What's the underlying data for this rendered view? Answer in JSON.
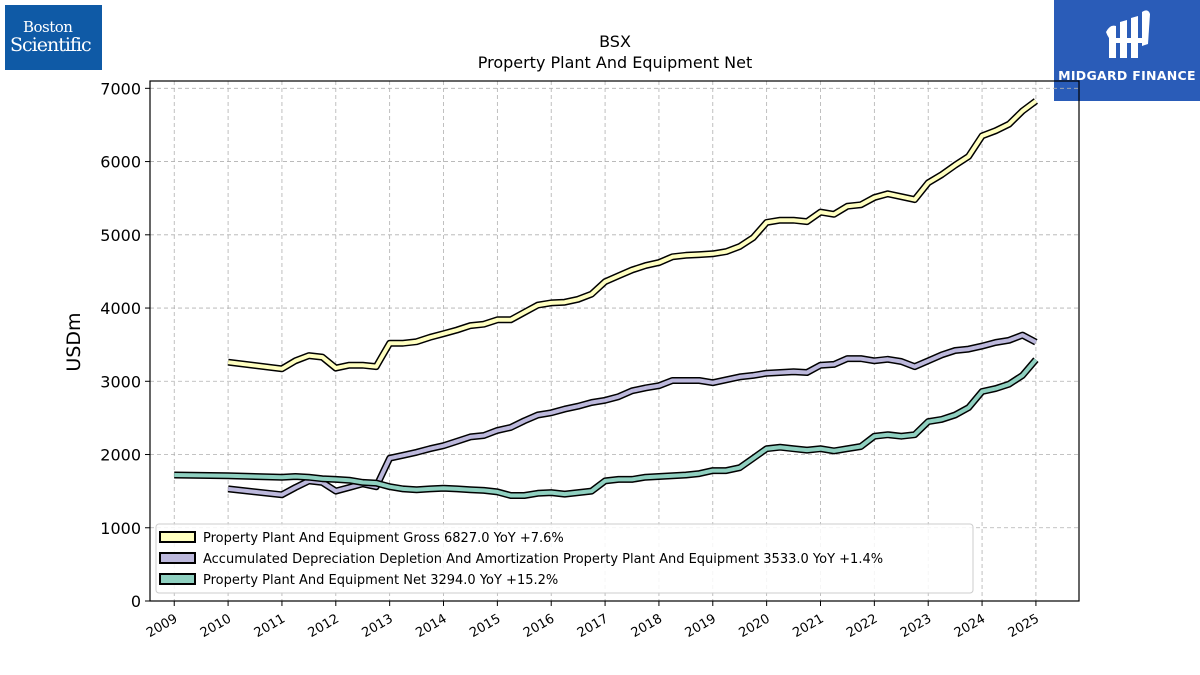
{
  "logos": {
    "left": {
      "line1": "Boston",
      "line2": "Scientific",
      "color": "#0f5aa6"
    },
    "right": {
      "text": "MIDGARD FINANCE",
      "icon": "midgard-logo-mark",
      "color": "#2a5cb8"
    }
  },
  "chart_data": {
    "type": "line",
    "title": "BSX",
    "subtitle": "Property Plant And Equipment Net",
    "xlabel": "",
    "ylabel": "USDm",
    "xlim": [
      2008.55,
      2025.8
    ],
    "ylim": [
      0,
      7100
    ],
    "yticks": [
      0,
      1000,
      2000,
      3000,
      4000,
      5000,
      6000,
      7000
    ],
    "xticks": [
      2009,
      2010,
      2011,
      2012,
      2013,
      2014,
      2015,
      2016,
      2017,
      2018,
      2019,
      2020,
      2021,
      2022,
      2023,
      2024,
      2025
    ],
    "grid": true,
    "legend_position": "lower-left",
    "series": [
      {
        "name": "Property Plant And Equipment Gross",
        "legend": "Property Plant And Equipment Gross  6827.0 YoY +7.6%",
        "color": "#ffffc0",
        "x": [
          2010.0,
          2011.0,
          2011.25,
          2011.5,
          2011.75,
          2012.0,
          2012.25,
          2012.5,
          2012.75,
          2013.0,
          2013.25,
          2013.5,
          2013.75,
          2014.0,
          2014.25,
          2014.5,
          2014.75,
          2015.0,
          2015.25,
          2015.5,
          2015.75,
          2016.0,
          2016.25,
          2016.5,
          2016.75,
          2017.0,
          2017.25,
          2017.5,
          2017.75,
          2018.0,
          2018.25,
          2018.5,
          2018.75,
          2019.0,
          2019.25,
          2019.5,
          2019.75,
          2020.0,
          2020.25,
          2020.5,
          2020.75,
          2021.0,
          2021.25,
          2021.5,
          2021.75,
          2022.0,
          2022.25,
          2022.5,
          2022.75,
          2023.0,
          2023.25,
          2023.5,
          2023.75,
          2024.0,
          2024.25,
          2024.5,
          2024.75,
          2025.0
        ],
        "y": [
          3260,
          3170,
          3280,
          3350,
          3330,
          3180,
          3220,
          3220,
          3200,
          3520,
          3520,
          3540,
          3600,
          3650,
          3700,
          3760,
          3780,
          3840,
          3840,
          3940,
          4040,
          4070,
          4080,
          4120,
          4190,
          4360,
          4440,
          4520,
          4580,
          4620,
          4700,
          4720,
          4730,
          4740,
          4770,
          4840,
          4960,
          5170,
          5200,
          5200,
          5180,
          5310,
          5280,
          5390,
          5410,
          5510,
          5560,
          5520,
          5480,
          5710,
          5820,
          5950,
          6070,
          6350,
          6420,
          6510,
          6690,
          6827
        ]
      },
      {
        "name": "Accumulated Depreciation Depletion And Amortization Property Plant And Equipment",
        "legend": "Accumulated Depreciation Depletion And Amortization Property Plant And Equipment  3533.0 YoY +1.4%",
        "color": "#bcb8dc",
        "x": [
          2010.0,
          2011.0,
          2011.25,
          2011.5,
          2011.75,
          2012.0,
          2012.25,
          2012.5,
          2012.75,
          2013.0,
          2013.25,
          2013.5,
          2013.75,
          2014.0,
          2014.25,
          2014.5,
          2014.75,
          2015.0,
          2015.25,
          2015.5,
          2015.75,
          2016.0,
          2016.25,
          2016.5,
          2016.75,
          2017.0,
          2017.25,
          2017.5,
          2017.75,
          2018.0,
          2018.25,
          2018.5,
          2018.75,
          2019.0,
          2019.25,
          2019.5,
          2019.75,
          2020.0,
          2020.25,
          2020.5,
          2020.75,
          2021.0,
          2021.25,
          2021.5,
          2021.75,
          2022.0,
          2022.25,
          2022.5,
          2022.75,
          2023.0,
          2023.25,
          2023.5,
          2023.75,
          2024.0,
          2024.25,
          2024.5,
          2024.75,
          2025.0
        ],
        "y": [
          1530,
          1450,
          1550,
          1640,
          1620,
          1500,
          1550,
          1600,
          1560,
          1950,
          1990,
          2030,
          2080,
          2120,
          2180,
          2240,
          2260,
          2330,
          2370,
          2460,
          2540,
          2570,
          2620,
          2660,
          2710,
          2740,
          2790,
          2870,
          2910,
          2940,
          3010,
          3010,
          3010,
          2980,
          3020,
          3060,
          3080,
          3110,
          3120,
          3130,
          3120,
          3220,
          3230,
          3310,
          3310,
          3280,
          3300,
          3270,
          3200,
          3280,
          3360,
          3420,
          3440,
          3480,
          3530,
          3560,
          3630,
          3533
        ]
      },
      {
        "name": "Property Plant And Equipment Net",
        "legend": "Property Plant And Equipment Net  3294.0 YoY +15.2%",
        "color": "#8fd0c0",
        "x": [
          2009.0,
          2010.0,
          2011.0,
          2011.25,
          2011.5,
          2011.75,
          2012.0,
          2012.25,
          2012.5,
          2012.75,
          2013.0,
          2013.25,
          2013.5,
          2013.75,
          2014.0,
          2014.25,
          2014.5,
          2014.75,
          2015.0,
          2015.25,
          2015.5,
          2015.75,
          2016.0,
          2016.25,
          2016.5,
          2016.75,
          2017.0,
          2017.25,
          2017.5,
          2017.75,
          2018.0,
          2018.25,
          2018.5,
          2018.75,
          2019.0,
          2019.25,
          2019.5,
          2019.75,
          2020.0,
          2020.25,
          2020.5,
          2020.75,
          2021.0,
          2021.25,
          2021.5,
          2021.75,
          2022.0,
          2022.25,
          2022.5,
          2022.75,
          2023.0,
          2023.25,
          2023.5,
          2023.75,
          2024.0,
          2024.25,
          2024.5,
          2024.75,
          2025.0
        ],
        "y": [
          1720,
          1710,
          1690,
          1700,
          1690,
          1670,
          1660,
          1650,
          1620,
          1610,
          1560,
          1530,
          1520,
          1530,
          1540,
          1530,
          1520,
          1510,
          1490,
          1440,
          1440,
          1470,
          1480,
          1460,
          1480,
          1500,
          1640,
          1660,
          1660,
          1690,
          1700,
          1710,
          1720,
          1740,
          1780,
          1780,
          1820,
          1950,
          2080,
          2100,
          2080,
          2060,
          2080,
          2050,
          2080,
          2110,
          2250,
          2270,
          2250,
          2270,
          2450,
          2480,
          2540,
          2640,
          2860,
          2900,
          2960,
          3080,
          3294
        ]
      }
    ]
  }
}
